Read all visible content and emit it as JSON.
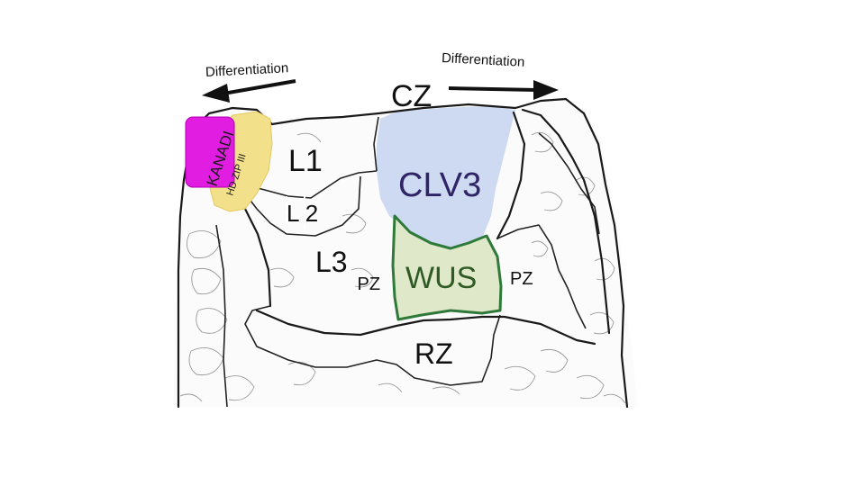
{
  "arrows": {
    "left_label": "Differentiation",
    "right_label": "Differentiation"
  },
  "zones": {
    "cz": "CZ",
    "l1": "L1",
    "l2": "L 2",
    "l3": "L3",
    "l3_subscript": "PZ",
    "pz": "PZ",
    "rz": "RZ"
  },
  "genes": {
    "clv3": "CLV3",
    "wus": "WUS",
    "kanadi": "KANADI",
    "hdzip": "HD ZIP III"
  },
  "colors": {
    "clv3_fill": "#c9d6ef",
    "clv3_text": "#2e2466",
    "wus_fill": "#dfe9c9",
    "wus_stroke": "#2f7a3a",
    "wus_text": "#2f5a26",
    "kanadi_fill": "#e01de0",
    "hdzip_fill": "#f3e08a"
  }
}
